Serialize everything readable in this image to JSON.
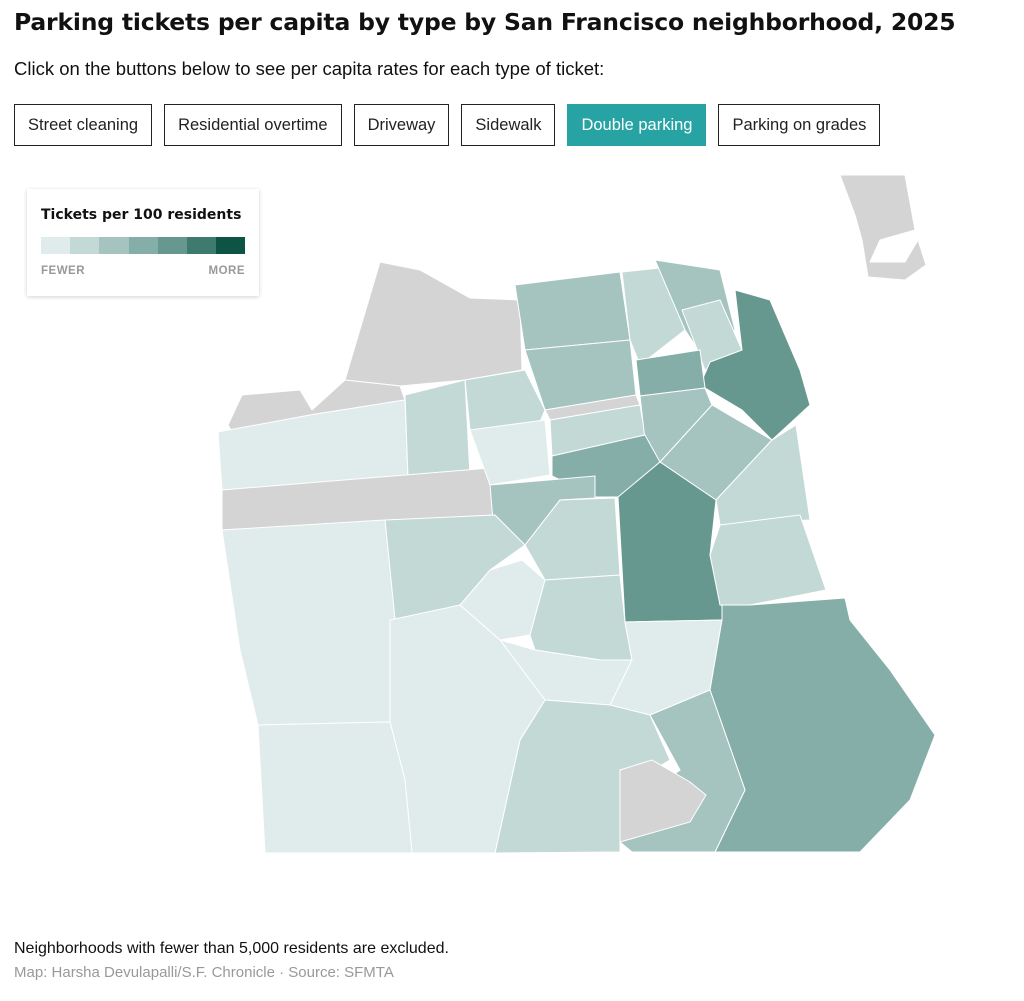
{
  "header": {
    "title": "Parking tickets per capita by type by San Francisco neighborhood, 2025",
    "subtitle": "Click on the buttons below to see per capita rates for each type of ticket:"
  },
  "buttons": [
    "Street cleaning",
    "Residential overtime",
    "Driveway",
    "Sidewalk",
    "Double parking",
    "Parking on grades"
  ],
  "active_button": 4,
  "legend": {
    "title": "Tickets per 100 residents",
    "colors": [
      "#dfeceb",
      "#c3d9d6",
      "#a5c4bf",
      "#86aea8",
      "#67988f",
      "#3f7a6e",
      "#0d5445"
    ],
    "low_label": "FEWER",
    "high_label": "MORE",
    "excluded_color": "#d4d4d4"
  },
  "footer": {
    "note": "Neighborhoods with fewer than 5,000 residents are excluded.",
    "credit": "Map: Harsha Devulapalli/S.F. Chronicle · Source: SFMTA"
  }
}
